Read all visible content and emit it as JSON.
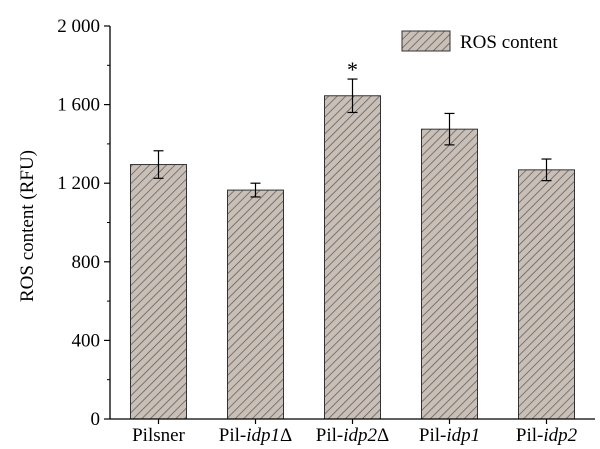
{
  "chart_data": {
    "type": "bar",
    "categories": [
      "Pilsner",
      "Pil-idp1Δ",
      "Pil-idp2Δ",
      "Pil-idp1",
      "Pil-idp2"
    ],
    "category_parts": [
      [
        {
          "text": "Pilsner",
          "italic": false
        }
      ],
      [
        {
          "text": "Pil-",
          "italic": false
        },
        {
          "text": "idp1",
          "italic": true
        },
        {
          "text": "Δ",
          "italic": false
        }
      ],
      [
        {
          "text": "Pil-",
          "italic": false
        },
        {
          "text": "idp2",
          "italic": true
        },
        {
          "text": "Δ",
          "italic": false
        }
      ],
      [
        {
          "text": "Pil-",
          "italic": false
        },
        {
          "text": "idp1",
          "italic": true
        }
      ],
      [
        {
          "text": "Pil-",
          "italic": false
        },
        {
          "text": "idp2",
          "italic": true
        }
      ]
    ],
    "series": [
      {
        "name": "ROS content",
        "values": [
          1295,
          1165,
          1645,
          1475,
          1268
        ],
        "errors": [
          70,
          35,
          85,
          80,
          55
        ]
      }
    ],
    "annotations": [
      {
        "category_index": 2,
        "text": "*"
      }
    ],
    "ylabel": "ROS content (RFU)",
    "xlabel": "",
    "ylim": [
      0,
      2000
    ],
    "yticks": [
      0,
      400,
      800,
      1200,
      1600,
      2000
    ],
    "ytick_labels": [
      "0",
      "400",
      "800",
      "1 200",
      "1 600",
      "2 000"
    ],
    "grid": false,
    "legend_position": "top-right",
    "bar_fill": "#c9bfb7",
    "hatch_color": "#555555"
  }
}
